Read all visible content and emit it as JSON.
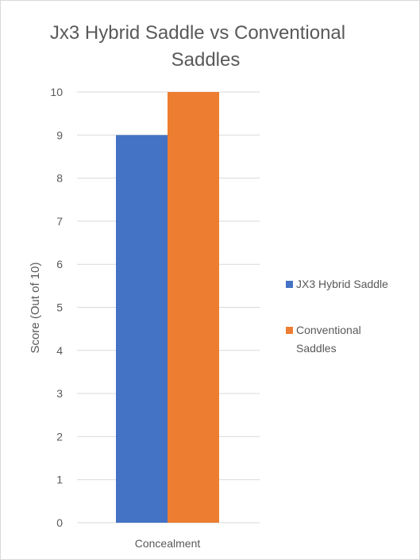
{
  "chart_data": {
    "type": "bar",
    "title_lines": [
      "Jx3 Hybrid Saddle vs Conventional",
      "Saddles"
    ],
    "categories": [
      "Concealment"
    ],
    "series": [
      {
        "name": "JX3 Hybrid Saddle",
        "values": [
          9
        ],
        "color": "#4472c4"
      },
      {
        "name": "Conventional Saddles",
        "values": [
          10
        ],
        "color": "#ed7d31"
      }
    ],
    "ylabel": "Score (Out of 10)",
    "xlabel": "",
    "ylim": [
      0,
      10
    ],
    "yticks": [
      0,
      1,
      2,
      3,
      4,
      5,
      6,
      7,
      8,
      9,
      10
    ],
    "grid": true,
    "legend_position": "right",
    "legend_lines": [
      [
        "JX3 Hybrid Saddle"
      ],
      [
        "Conventional",
        "Saddles"
      ]
    ]
  }
}
